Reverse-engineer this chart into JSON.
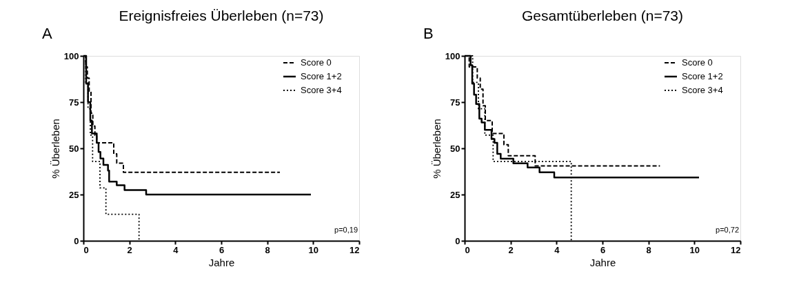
{
  "chart_data": [
    {
      "type": "step",
      "title": "Ereignisfreies Überleben (n=73)",
      "xlabel": "Jahre",
      "ylabel": "% Überleben",
      "annotations": [
        "A",
        "p=0,19"
      ],
      "xlim": [
        0,
        12
      ],
      "xticks": [
        0,
        2,
        4,
        6,
        8,
        10,
        12
      ],
      "ylim": [
        0,
        100
      ],
      "yticks": [
        0,
        25,
        50,
        75,
        100
      ],
      "grid": false,
      "legend": "top right",
      "series": [
        {
          "name": "Score 0",
          "color": "#000000",
          "line_style": "dashed",
          "x": [
            0,
            0.1,
            0.17,
            0.25,
            0.33,
            0.41,
            0.5,
            0.58,
            1.32,
            1.45,
            1.74,
            8.55
          ],
          "values": [
            100,
            94,
            88,
            81,
            69,
            62,
            57,
            53,
            47,
            42,
            37,
            37
          ]
        },
        {
          "name": "Score 1+2",
          "color": "#000000",
          "line_style": "solid",
          "x": [
            0,
            0.12,
            0.2,
            0.3,
            0.37,
            0.58,
            0.66,
            0.74,
            0.87,
            1.07,
            1.12,
            1.45,
            1.79,
            2.73,
            9.9
          ],
          "values": [
            100,
            85,
            75,
            65,
            58,
            53,
            48,
            44.5,
            41,
            38,
            32,
            30,
            27.4,
            25,
            25
          ]
        },
        {
          "name": "Score 3+4",
          "color": "#000000",
          "line_style": "dotted",
          "x": [
            0,
            0.1,
            0.2,
            0.3,
            0.4,
            0.72,
            0.98,
            2.42
          ],
          "values": [
            100,
            85.7,
            71.4,
            57.1,
            42.9,
            28.6,
            14.3,
            0
          ]
        }
      ]
    },
    {
      "type": "step",
      "title": "Gesamtüberleben (n=73)",
      "xlabel": "Jahre",
      "ylabel": "% Überleben",
      "annotations": [
        "B",
        "p=0,72"
      ],
      "xlim": [
        0,
        12
      ],
      "xticks": [
        0,
        2,
        4,
        6,
        8,
        10,
        12
      ],
      "ylim": [
        0,
        100
      ],
      "yticks": [
        0,
        25,
        50,
        75,
        100
      ],
      "grid": false,
      "legend": "top right",
      "series": [
        {
          "name": "Score 0",
          "color": "#000000",
          "line_style": "dashed",
          "x": [
            0,
            0.2,
            0.55,
            0.68,
            0.8,
            0.9,
            1.2,
            1.71,
            1.9,
            3.07,
            8.5
          ],
          "values": [
            100,
            94,
            88,
            82,
            73,
            65,
            58,
            52,
            46,
            40.5,
            40.5
          ]
        },
        {
          "name": "Score 1+2",
          "color": "#000000",
          "line_style": "solid",
          "x": [
            0,
            0.26,
            0.33,
            0.41,
            0.5,
            0.64,
            0.74,
            0.88,
            1.17,
            1.3,
            1.42,
            1.57,
            1.69,
            2.12,
            2.74,
            3.26,
            3.9,
            10.2
          ],
          "values": [
            100,
            95,
            85,
            79,
            74,
            66,
            64,
            60,
            55,
            53,
            47,
            44.4,
            44.4,
            41.9,
            39.6,
            37,
            34.2,
            34.2
          ]
        },
        {
          "name": "Score 3+4",
          "color": "#000000",
          "line_style": "dotted",
          "x": [
            0,
            0.35,
            0.6,
            0.88,
            1.24,
            4.64
          ],
          "values": [
            100,
            85.7,
            71.4,
            57.1,
            42.9,
            0
          ]
        }
      ]
    }
  ]
}
